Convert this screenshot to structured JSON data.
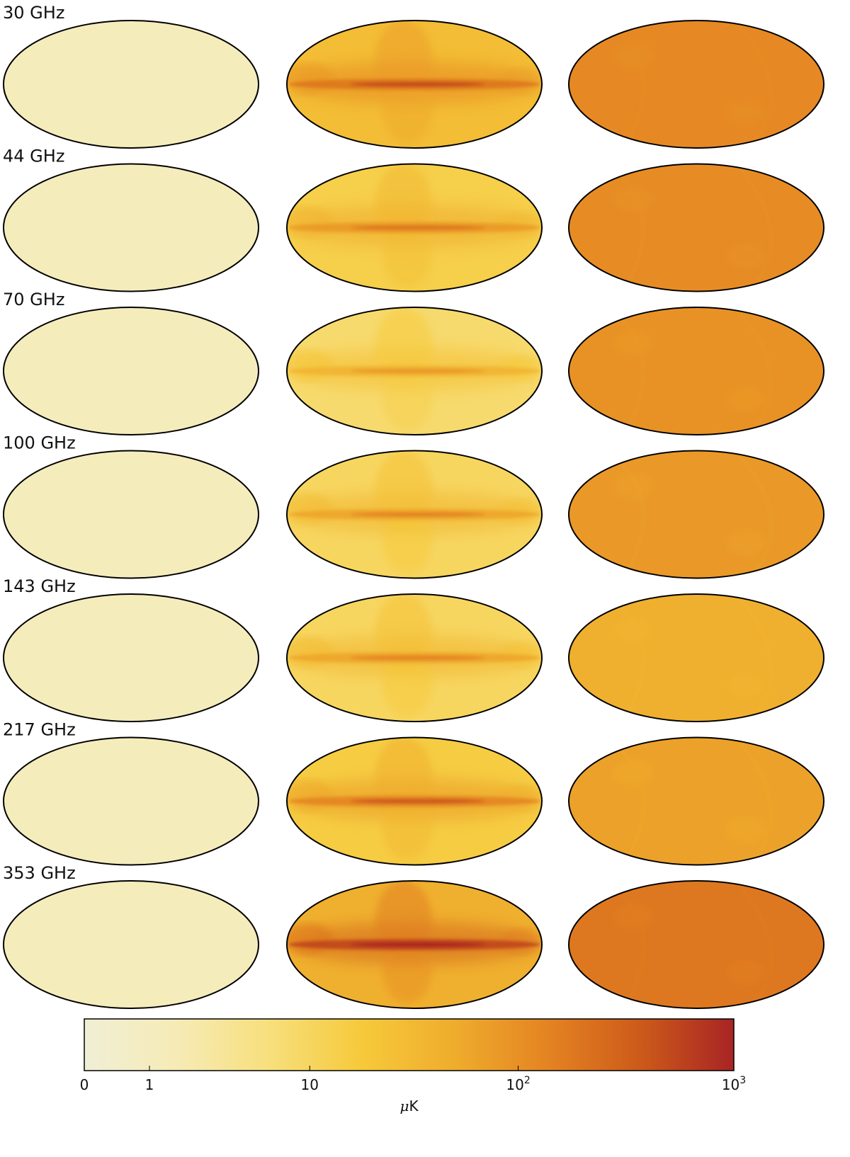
{
  "chart_data": {
    "type": "heatmap",
    "projection": "mollweide",
    "rows": [
      {
        "label": "30 GHz",
        "levels": [
          1.3,
          28,
          120
        ],
        "strength": [
          0.15,
          1.0,
          0.25
        ]
      },
      {
        "label": "44 GHz",
        "levels": [
          1.2,
          14,
          110
        ],
        "strength": [
          0.15,
          0.9,
          0.25
        ]
      },
      {
        "label": "70 GHz",
        "levels": [
          1.2,
          8,
          95
        ],
        "strength": [
          0.15,
          0.8,
          0.3
        ]
      },
      {
        "label": "100 GHz",
        "levels": [
          1.2,
          10,
          80
        ],
        "strength": [
          0.15,
          0.9,
          0.3
        ]
      },
      {
        "label": "143 GHz",
        "levels": [
          1.2,
          10,
          45
        ],
        "strength": [
          0.15,
          0.9,
          0.3
        ]
      },
      {
        "label": "217 GHz",
        "levels": [
          1.2,
          16,
          65
        ],
        "strength": [
          0.15,
          1.1,
          0.3
        ]
      },
      {
        "label": "353 GHz",
        "levels": [
          1.2,
          45,
          180
        ],
        "strength": [
          0.15,
          1.3,
          0.3
        ]
      }
    ],
    "colorbar": {
      "scale": "symlog",
      "range": [
        0,
        1000
      ],
      "ticks": [
        {
          "value": 0,
          "label": "0",
          "sup": ""
        },
        {
          "value": 1,
          "label": "1",
          "sup": ""
        },
        {
          "value": 10,
          "label": "10",
          "sup": ""
        },
        {
          "value": 100,
          "label": "10",
          "sup": "2"
        },
        {
          "value": 1000,
          "label": "10",
          "sup": "3"
        }
      ],
      "unit_prefix": "μ",
      "unit_main": "K"
    },
    "colormap": [
      "#f0efd6",
      "#f6ebb6",
      "#f7df7c",
      "#f6c93a",
      "#efac2d",
      "#e48322",
      "#cc5a1a",
      "#a82424"
    ]
  }
}
